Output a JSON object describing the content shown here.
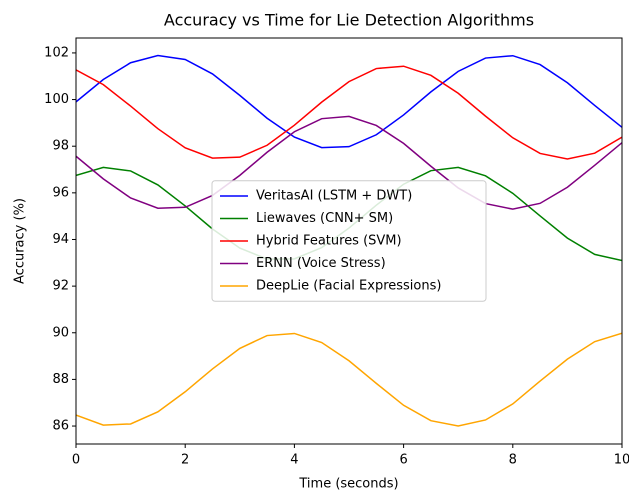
{
  "chart_data": {
    "type": "line",
    "title": "Accuracy vs Time for Lie Detection Algorithms",
    "x_label": "Time (seconds)",
    "y_label": "Accuracy (%)",
    "x": [
      0,
      0.5,
      1,
      1.5,
      2,
      2.5,
      3,
      3.5,
      4,
      4.5,
      5,
      5.5,
      6,
      6.5,
      7,
      7.5,
      8,
      8.5,
      9,
      9.5,
      10
    ],
    "series": [
      {
        "name": "VeritasAI (LSTM + DWT)",
        "color": "#0000ff",
        "values": [
          99.9,
          100.86,
          101.58,
          101.89,
          101.72,
          101.1,
          100.18,
          99.2,
          98.39,
          97.94,
          97.98,
          98.49,
          99.34,
          100.33,
          101.21,
          101.78,
          101.88,
          101.5,
          100.72,
          99.75,
          98.81
        ]
      },
      {
        "name": "Liewaves (CNN+ SM)",
        "color": "#008000",
        "values": [
          96.75,
          97.09,
          96.94,
          96.34,
          95.44,
          94.45,
          93.63,
          93.16,
          93.17,
          93.65,
          94.49,
          95.47,
          96.37,
          96.95,
          97.09,
          96.73,
          95.98,
          95.01,
          94.06,
          93.36,
          93.1
        ]
      },
      {
        "name": "Hybrid Features (SVM)",
        "color": "#ff0000",
        "values": [
          101.27,
          100.64,
          99.72,
          98.75,
          97.93,
          97.49,
          97.53,
          98.04,
          98.9,
          99.89,
          100.77,
          101.33,
          101.43,
          101.04,
          100.27,
          99.29,
          98.36,
          97.69,
          97.45,
          97.7,
          98.39
        ]
      },
      {
        "name": "ERNN (Voice Stress)",
        "color": "#800080",
        "values": [
          97.57,
          96.6,
          95.78,
          95.34,
          95.38,
          95.89,
          96.75,
          97.74,
          98.62,
          99.18,
          99.28,
          98.89,
          98.12,
          97.14,
          96.21,
          95.54,
          95.3,
          95.55,
          96.24,
          97.18,
          98.15
        ]
      },
      {
        "name": "DeepLie (Facial Expressions)",
        "color": "#ffa500",
        "values": [
          86.47,
          86.04,
          86.09,
          86.61,
          87.47,
          88.45,
          89.33,
          89.88,
          89.97,
          89.58,
          88.8,
          87.83,
          86.89,
          86.23,
          86.0,
          86.26,
          86.95,
          87.93,
          88.87,
          89.62,
          89.98
        ]
      }
    ],
    "xlim": [
      0,
      10
    ],
    "xticks": [
      0,
      2,
      4,
      6,
      8,
      10
    ],
    "ylim": [
      85.23,
      102.64
    ],
    "yticks": [
      86,
      88,
      90,
      92,
      94,
      96,
      98,
      100,
      102
    ],
    "legend": "center",
    "grid": false
  }
}
